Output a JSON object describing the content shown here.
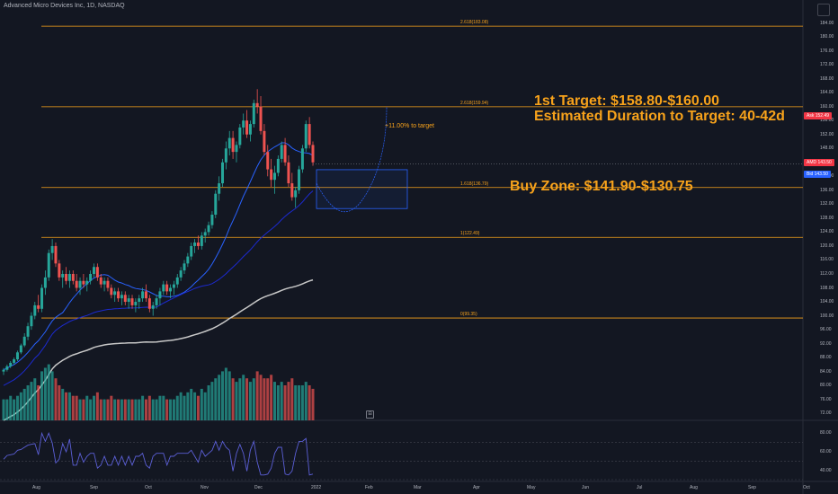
{
  "header": {
    "title": "Advanced Micro Devices Inc, 1D, NASDAQ"
  },
  "annotations": {
    "target_line1": "1st Target: $158.80-$160.00",
    "target_line2": "Estimated Duration to Target: 40-42d",
    "buy_zone": "Buy Zone: $141.90-$130.75",
    "pct_to_target": "+11.00% to target"
  },
  "fib_labels": [
    {
      "text": "2.618(183.08)",
      "value": 183.08
    },
    {
      "text": "2.618(159.94)",
      "value": 159.94
    },
    {
      "text": "1.618(136.79)",
      "value": 136.79
    },
    {
      "text": "1(122.49)",
      "value": 122.49
    },
    {
      "text": "0(99.35)",
      "value": 99.35
    }
  ],
  "y_ticks": [
    "184.00",
    "180.00",
    "176.00",
    "172.00",
    "168.00",
    "164.00",
    "160.00",
    "156.00",
    "152.00",
    "148.00",
    "144.00",
    "140.00",
    "136.00",
    "132.00",
    "128.00",
    "124.00",
    "120.00",
    "116.00",
    "112.00",
    "108.00",
    "104.00",
    "100.00",
    "96.00",
    "92.00",
    "88.00",
    "84.00",
    "80.00",
    "76.00",
    "72.00"
  ],
  "rsi_ticks": [
    "80.00",
    "60.00",
    "40.00"
  ],
  "x_ticks": [
    "Aug",
    "Sep",
    "Oct",
    "Nov",
    "Dec",
    "2022",
    "Feb",
    "Mar",
    "Apr",
    "May",
    "Jun",
    "Jul",
    "Aug",
    "Sep",
    "Oct"
  ],
  "badges": {
    "ask": {
      "label": "Ask",
      "value": "152.49",
      "color": "#f23645"
    },
    "last": {
      "label": "AMD",
      "value": "143.50",
      "color": "#f23645"
    },
    "bid": {
      "label": "Bid",
      "value": "143.50",
      "color": "#2962ff"
    }
  },
  "colors": {
    "up": "#26a69a",
    "down": "#ef5350",
    "fib": "#f7a21b",
    "ma_fast": "#2962ff",
    "ma_mid": "#1c2ad1",
    "ma_slow": "#c8c8c8",
    "rsi": "#5b5fd6"
  },
  "chart_data": {
    "type": "candlestick",
    "symbol": "AMD",
    "timeframe": "1D",
    "ylim": [
      70,
      188
    ],
    "last_price": 143.5,
    "ask_price": 152.49,
    "candles": [
      [
        84,
        85,
        83,
        84.5
      ],
      [
        84.5,
        86,
        84,
        85.5
      ],
      [
        85.5,
        87,
        85,
        86.5
      ],
      [
        86.5,
        88,
        86,
        87.5
      ],
      [
        87.5,
        90,
        87,
        89.5
      ],
      [
        89.5,
        92,
        89,
        91.5
      ],
      [
        91.5,
        95,
        91,
        94
      ],
      [
        94,
        98,
        93,
        97
      ],
      [
        97,
        101,
        96,
        100
      ],
      [
        100,
        104,
        99,
        103
      ],
      [
        103,
        106,
        101,
        102
      ],
      [
        102,
        109,
        101,
        108
      ],
      [
        108,
        113,
        106,
        111
      ],
      [
        111,
        119,
        110,
        118
      ],
      [
        118,
        122,
        116,
        120
      ],
      [
        120,
        121,
        114,
        115
      ],
      [
        115,
        116,
        110,
        111
      ],
      [
        111,
        113,
        108,
        112
      ],
      [
        112,
        114,
        109,
        110
      ],
      [
        110,
        113,
        108,
        112
      ],
      [
        112,
        113,
        109,
        110
      ],
      [
        110,
        112,
        107,
        108
      ],
      [
        108,
        111,
        106,
        110
      ],
      [
        110,
        112,
        108,
        109
      ],
      [
        109,
        111,
        107,
        110
      ],
      [
        110,
        113,
        109,
        112
      ],
      [
        112,
        115,
        111,
        114
      ],
      [
        114,
        115,
        110,
        111
      ],
      [
        111,
        112,
        108,
        109
      ],
      [
        109,
        111,
        107,
        110
      ],
      [
        110,
        111,
        107,
        108
      ],
      [
        108,
        109,
        105,
        106
      ],
      [
        106,
        108,
        104,
        107
      ],
      [
        107,
        108,
        104,
        105
      ],
      [
        105,
        107,
        103,
        106
      ],
      [
        106,
        107,
        103,
        104
      ],
      [
        104,
        106,
        102,
        105
      ],
      [
        105,
        106,
        102,
        103
      ],
      [
        103,
        105,
        101,
        104
      ],
      [
        104,
        106,
        102,
        105
      ],
      [
        105,
        108,
        104,
        107
      ],
      [
        107,
        109,
        104,
        105
      ],
      [
        105,
        106,
        101,
        102
      ],
      [
        102,
        104,
        100,
        103
      ],
      [
        103,
        106,
        102,
        105
      ],
      [
        105,
        108,
        103,
        107
      ],
      [
        107,
        110,
        106,
        109
      ],
      [
        109,
        110,
        106,
        107
      ],
      [
        107,
        109,
        105,
        108
      ],
      [
        108,
        110,
        106,
        109
      ],
      [
        109,
        112,
        108,
        111
      ],
      [
        111,
        114,
        110,
        113
      ],
      [
        113,
        116,
        112,
        115
      ],
      [
        115,
        118,
        114,
        117
      ],
      [
        117,
        121,
        116,
        120
      ],
      [
        120,
        122,
        118,
        121
      ],
      [
        121,
        123,
        119,
        120
      ],
      [
        120,
        124,
        119,
        123
      ],
      [
        123,
        125,
        121,
        124
      ],
      [
        124,
        127,
        123,
        126
      ],
      [
        126,
        130,
        125,
        129
      ],
      [
        129,
        136,
        128,
        135
      ],
      [
        135,
        140,
        133,
        138
      ],
      [
        138,
        145,
        137,
        144
      ],
      [
        144,
        150,
        142,
        148
      ],
      [
        148,
        153,
        146,
        151
      ],
      [
        151,
        153,
        145,
        147
      ],
      [
        147,
        150,
        144,
        149
      ],
      [
        149,
        155,
        148,
        154
      ],
      [
        154,
        158,
        152,
        156
      ],
      [
        156,
        159,
        151,
        152
      ],
      [
        152,
        156,
        150,
        155
      ],
      [
        155,
        162,
        154,
        161
      ],
      [
        161,
        165,
        158,
        160
      ],
      [
        160,
        163,
        152,
        153
      ],
      [
        153,
        155,
        146,
        147
      ],
      [
        147,
        149,
        140,
        142
      ],
      [
        142,
        145,
        137,
        139
      ],
      [
        139,
        143,
        135,
        141
      ],
      [
        141,
        146,
        140,
        145
      ],
      [
        145,
        150,
        144,
        149
      ],
      [
        149,
        151,
        143,
        144
      ],
      [
        144,
        146,
        137,
        138
      ],
      [
        138,
        141,
        133,
        134
      ],
      [
        134,
        137,
        131,
        136
      ],
      [
        136,
        143,
        135,
        142
      ],
      [
        142,
        149,
        141,
        148
      ],
      [
        148,
        156,
        147,
        155
      ],
      [
        155,
        157,
        148,
        149
      ],
      [
        149,
        150,
        143,
        144
      ]
    ],
    "volume_relative": [
      0.3,
      0.3,
      0.35,
      0.3,
      0.35,
      0.4,
      0.45,
      0.5,
      0.55,
      0.6,
      0.5,
      0.7,
      0.75,
      0.8,
      0.7,
      0.6,
      0.5,
      0.45,
      0.4,
      0.4,
      0.35,
      0.35,
      0.3,
      0.3,
      0.35,
      0.3,
      0.35,
      0.4,
      0.3,
      0.3,
      0.3,
      0.35,
      0.3,
      0.3,
      0.3,
      0.3,
      0.3,
      0.3,
      0.3,
      0.3,
      0.35,
      0.3,
      0.35,
      0.3,
      0.3,
      0.35,
      0.35,
      0.3,
      0.3,
      0.3,
      0.35,
      0.4,
      0.35,
      0.4,
      0.45,
      0.4,
      0.35,
      0.45,
      0.4,
      0.5,
      0.55,
      0.6,
      0.65,
      0.7,
      0.75,
      0.7,
      0.6,
      0.55,
      0.6,
      0.65,
      0.6,
      0.55,
      0.6,
      0.7,
      0.65,
      0.6,
      0.6,
      0.65,
      0.55,
      0.5,
      0.55,
      0.5,
      0.55,
      0.6,
      0.5,
      0.5,
      0.5,
      0.55,
      0.5,
      0.45
    ],
    "buy_zone": {
      "top": 141.9,
      "bottom": 130.75
    },
    "target_zone": {
      "low": 158.8,
      "high": 160.0
    },
    "rsi": {
      "ylim": [
        30,
        90
      ],
      "levels": [
        70,
        50,
        30
      ]
    }
  }
}
